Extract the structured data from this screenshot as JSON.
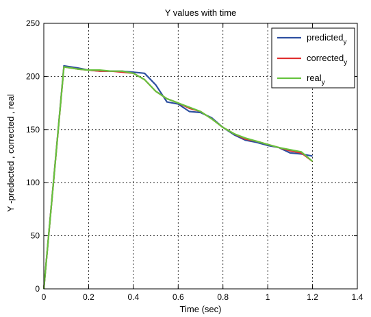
{
  "chart_data": {
    "type": "line",
    "title": "Y values with time",
    "xlabel": "Time (sec)",
    "ylabel": "Y -predected , corrected , real",
    "xlim": [
      0,
      1.4
    ],
    "ylim": [
      0,
      250
    ],
    "xticks": [
      0,
      0.2,
      0.4,
      0.6,
      0.8,
      1,
      1.2,
      1.4
    ],
    "xtick_labels": [
      "0",
      "0.2",
      "0.4",
      "0.6",
      "0.8",
      "1",
      "1.2",
      "1.4"
    ],
    "yticks": [
      0,
      50,
      100,
      150,
      200,
      250
    ],
    "ytick_labels": [
      "0",
      "50",
      "100",
      "150",
      "200",
      "250"
    ],
    "grid": true,
    "legend_position": "top-right",
    "series": [
      {
        "name": "predicted",
        "name_subscript": "y",
        "color": "#2d4fa0",
        "x": [
          0,
          0.09,
          0.15,
          0.2,
          0.25,
          0.3,
          0.35,
          0.4,
          0.45,
          0.5,
          0.55,
          0.6,
          0.65,
          0.7,
          0.75,
          0.8,
          0.85,
          0.9,
          0.95,
          1.0,
          1.05,
          1.1,
          1.15,
          1.2
        ],
        "y": [
          0,
          210,
          208,
          206,
          205,
          205,
          205,
          204,
          203,
          192,
          176,
          174,
          167,
          166,
          161,
          152,
          145,
          140,
          138,
          135,
          133,
          128,
          127,
          125
        ]
      },
      {
        "name": "corrected",
        "name_subscript": "y",
        "color": "#e03030",
        "x": [
          0,
          0.09,
          0.15,
          0.2,
          0.25,
          0.3,
          0.35,
          0.4,
          0.45,
          0.5,
          0.55,
          0.6,
          0.65,
          0.7,
          0.75,
          0.8,
          0.85,
          0.9,
          0.95,
          1.0,
          1.05,
          1.1,
          1.15,
          1.2
        ],
        "y": [
          0,
          209,
          207,
          206,
          205,
          205,
          204,
          203,
          197,
          186,
          179,
          175,
          170,
          167,
          160,
          152,
          146,
          141,
          139,
          136,
          133,
          130,
          128,
          120
        ]
      },
      {
        "name": "real",
        "name_subscript": "y",
        "color": "#66c33e",
        "x": [
          0,
          0.09,
          0.15,
          0.2,
          0.25,
          0.3,
          0.35,
          0.4,
          0.45,
          0.5,
          0.55,
          0.6,
          0.65,
          0.7,
          0.75,
          0.8,
          0.85,
          0.9,
          0.95,
          1.0,
          1.05,
          1.1,
          1.15,
          1.2
        ],
        "y": [
          0,
          209,
          207,
          206,
          206,
          205,
          205,
          203,
          197,
          186,
          179,
          175,
          171,
          167,
          160,
          152,
          146,
          142,
          139,
          136,
          133,
          131,
          129,
          120
        ]
      }
    ]
  }
}
